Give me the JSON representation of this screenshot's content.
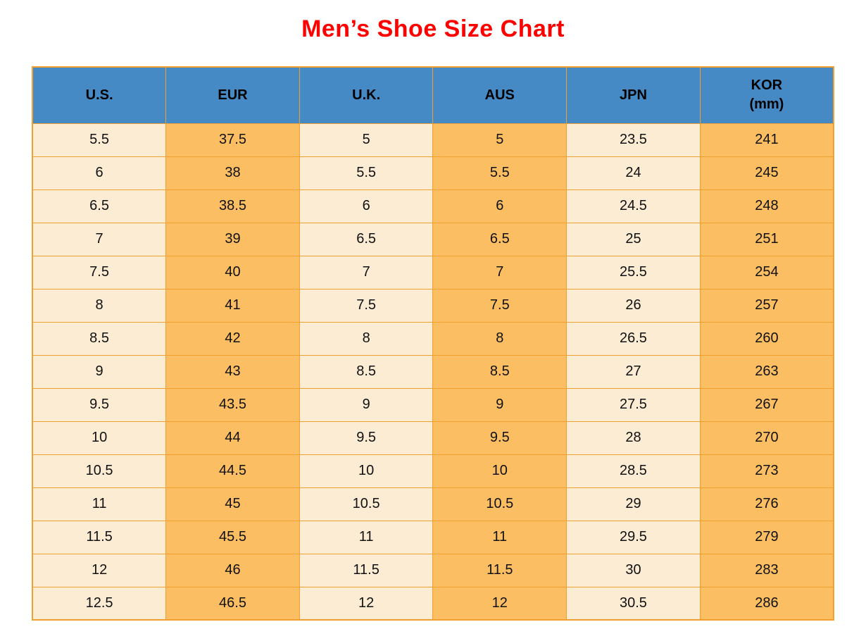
{
  "title": "Men’s Shoe Size Chart",
  "colors": {
    "title_color": "#ff0000",
    "header_bg": "#4589c5",
    "header_text": "#000000",
    "cell_text": "#111111",
    "cream_column_bg": "#fcecd4",
    "orange_column_bg": "#fcbe63",
    "border": "#f1a02f",
    "page_bg": "#ffffff"
  },
  "table": {
    "header_display": [
      [
        "U.S."
      ],
      [
        "EUR"
      ],
      [
        "U.K."
      ],
      [
        "AUS"
      ],
      [
        "JPN"
      ],
      [
        "KOR",
        "(mm)"
      ]
    ],
    "column_pattern": [
      "cream",
      "orange",
      "cream",
      "orange",
      "cream",
      "orange"
    ]
  },
  "chart_data": {
    "type": "table",
    "title": "Men’s Shoe Size Chart",
    "columns": [
      "U.S.",
      "EUR",
      "U.K.",
      "AUS",
      "JPN",
      "KOR (mm)"
    ],
    "rows": [
      [
        "5.5",
        "37.5",
        "5",
        "5",
        "23.5",
        "241"
      ],
      [
        "6",
        "38",
        "5.5",
        "5.5",
        "24",
        "245"
      ],
      [
        "6.5",
        "38.5",
        "6",
        "6",
        "24.5",
        "248"
      ],
      [
        "7",
        "39",
        "6.5",
        "6.5",
        "25",
        "251"
      ],
      [
        "7.5",
        "40",
        "7",
        "7",
        "25.5",
        "254"
      ],
      [
        "8",
        "41",
        "7.5",
        "7.5",
        "26",
        "257"
      ],
      [
        "8.5",
        "42",
        "8",
        "8",
        "26.5",
        "260"
      ],
      [
        "9",
        "43",
        "8.5",
        "8.5",
        "27",
        "263"
      ],
      [
        "9.5",
        "43.5",
        "9",
        "9",
        "27.5",
        "267"
      ],
      [
        "10",
        "44",
        "9.5",
        "9.5",
        "28",
        "270"
      ],
      [
        "10.5",
        "44.5",
        "10",
        "10",
        "28.5",
        "273"
      ],
      [
        "11",
        "45",
        "10.5",
        "10.5",
        "29",
        "276"
      ],
      [
        "11.5",
        "45.5",
        "11",
        "11",
        "29.5",
        "279"
      ],
      [
        "12",
        "46",
        "11.5",
        "11.5",
        "30",
        "283"
      ],
      [
        "12.5",
        "46.5",
        "12",
        "12",
        "30.5",
        "286"
      ]
    ]
  }
}
